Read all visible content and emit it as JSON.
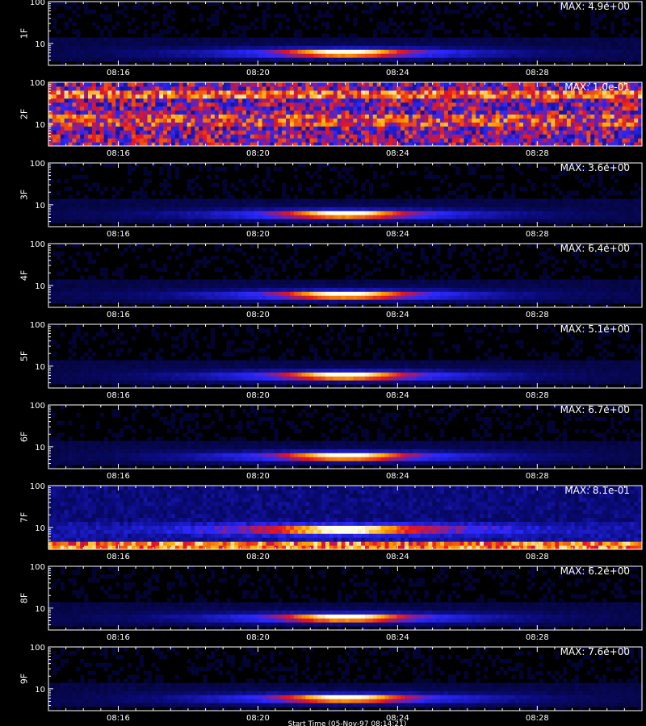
{
  "chart_data": {
    "type": "heatmap",
    "x_tick_labels": [
      "08:16",
      "08:20",
      "08:24",
      "08:28"
    ],
    "y_tick_labels": [
      "10",
      "100"
    ],
    "yscale": "log",
    "ylim": [
      3,
      100
    ],
    "xlim": [
      "08:14",
      "08:31"
    ],
    "colormap": "black-blue-red-yellow-white",
    "panels": [
      {
        "name": "1F",
        "max_label": "MAX: 4.9e+00",
        "burst_peak_time": "08:22:30",
        "burst_band": 6,
        "mode": "burst"
      },
      {
        "name": "2F",
        "max_label": "MAX: 1.0e-01",
        "burst_peak_time": null,
        "burst_band": null,
        "mode": "noise"
      },
      {
        "name": "3F",
        "max_label": "MAX: 3.6e+00",
        "burst_peak_time": "08:22:30",
        "burst_band": 6,
        "mode": "burst"
      },
      {
        "name": "4F",
        "max_label": "MAX: 6.4e+00",
        "burst_peak_time": "08:22:30",
        "burst_band": 6,
        "mode": "burst"
      },
      {
        "name": "5F",
        "max_label": "MAX: 5.1e+00",
        "burst_peak_time": "08:22:30",
        "burst_band": 6,
        "mode": "burst"
      },
      {
        "name": "6F",
        "max_label": "MAX: 6.7e+00",
        "burst_peak_time": "08:22:30",
        "burst_band": 6,
        "mode": "burst"
      },
      {
        "name": "7F",
        "max_label": "MAX: 8.1e-01",
        "burst_peak_time": "08:22:30",
        "burst_band": 9,
        "mode": "burst-floor"
      },
      {
        "name": "8F",
        "max_label": "MAX: 6.2e+00",
        "burst_peak_time": "08:22:30",
        "burst_band": 6,
        "mode": "burst"
      },
      {
        "name": "9F",
        "max_label": "MAX: 7.6e+00",
        "burst_peak_time": "08:22:30",
        "burst_band": 6,
        "mode": "burst"
      }
    ],
    "xlabel": "Start Time (05-Nov-97 08:14:21)"
  }
}
